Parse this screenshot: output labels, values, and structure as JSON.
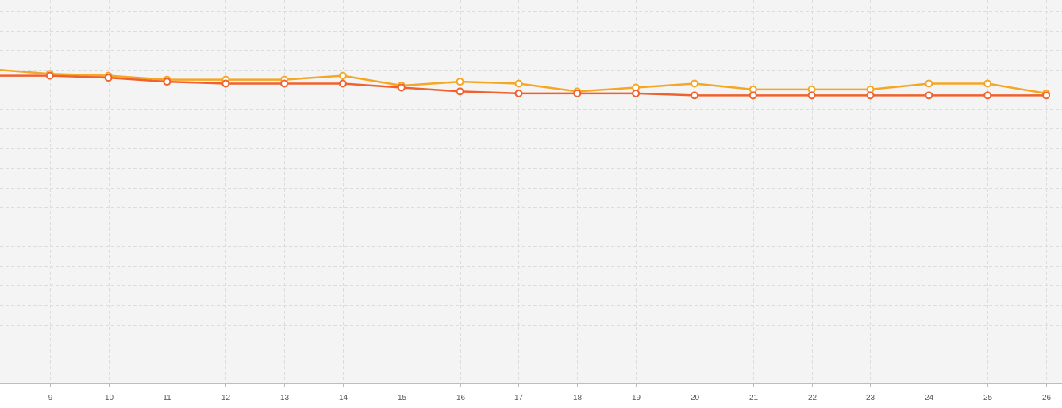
{
  "chart_data": {
    "type": "line",
    "title": "",
    "xlabel": "",
    "ylabel": "",
    "x": [
      9,
      10,
      11,
      12,
      13,
      14,
      15,
      16,
      17,
      18,
      19,
      20,
      21,
      22,
      23,
      24,
      25,
      26
    ],
    "x_visible_range": [
      8.15,
      26
    ],
    "x_ticks": [
      "9",
      "10",
      "11",
      "12",
      "13",
      "14",
      "15",
      "16",
      "17",
      "18",
      "19",
      "20",
      "21",
      "22",
      "23",
      "24",
      "25",
      "26"
    ],
    "ylim": [
      0,
      19
    ],
    "y_grid_count": 19,
    "y_tick_labels_shown": false,
    "grid": true,
    "legend": "none",
    "series": [
      {
        "color": "#f5a623",
        "values": [
          15.8,
          15.7,
          15.5,
          15.5,
          15.5,
          15.7,
          15.2,
          15.4,
          15.3,
          14.9,
          15.1,
          15.3,
          15.0,
          15.0,
          15.0,
          15.3,
          15.3,
          14.8
        ],
        "left_edge_value": 16.0
      },
      {
        "color": "#f0612d",
        "values": [
          15.7,
          15.6,
          15.4,
          15.3,
          15.3,
          15.3,
          15.1,
          14.9,
          14.8,
          14.8,
          14.8,
          14.7,
          14.7,
          14.7,
          14.7,
          14.7,
          14.7,
          14.7
        ],
        "left_edge_value": 15.7
      }
    ],
    "colors": {
      "background": "#f4f4f4",
      "grid": "#dcdcdc",
      "axis": "#bdbdbd"
    }
  }
}
